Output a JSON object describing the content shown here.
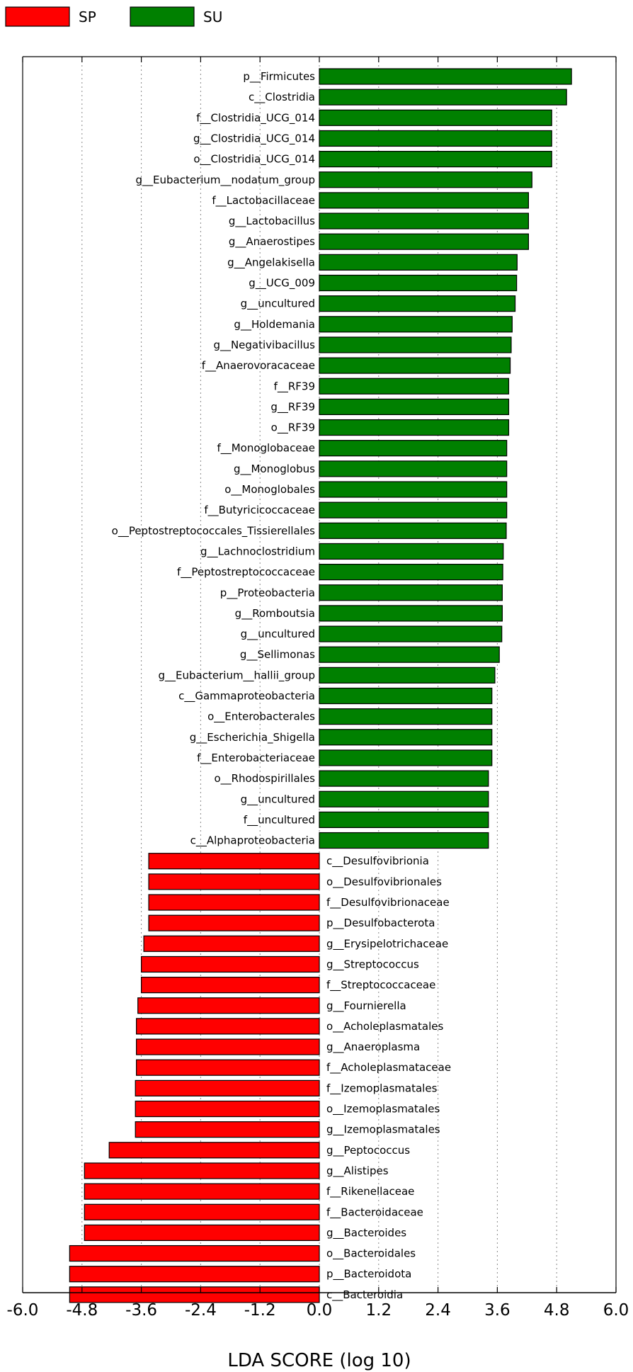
{
  "chart_data": {
    "type": "bar",
    "orientation": "horizontal",
    "xlabel": "LDA SCORE (log 10)",
    "xlim": [
      -6.0,
      6.0
    ],
    "xticks": [
      "-6.0",
      "-4.8",
      "-3.6",
      "-2.4",
      "-1.2",
      "0.0",
      "1.2",
      "2.4",
      "3.6",
      "4.8",
      "6.0"
    ],
    "grid": "vertical dotted",
    "legend": {
      "placement": "top-left",
      "entries": [
        {
          "name": "SP",
          "color": "#ff0000"
        },
        {
          "name": "SU",
          "color": "#008000"
        }
      ]
    },
    "series": [
      {
        "name": "SU",
        "color": "#008000",
        "categories": [
          "p__Firmicutes",
          "c__Clostridia",
          "f__Clostridia_UCG_014",
          "g__Clostridia_UCG_014",
          "o__Clostridia_UCG_014",
          "g__Eubacterium__nodatum_group",
          "f__Lactobacillaceae",
          "g__Lactobacillus",
          "g__Anaerostipes",
          "g__Angelakisella",
          "g__UCG_009",
          "g__uncultured",
          "g__Holdemania",
          "g__Negativibacillus",
          "f__Anaerovoracaceae",
          "f__RF39",
          "g__RF39",
          "o__RF39",
          "f__Monoglobaceae",
          "g__Monoglobus",
          "o__Monoglobales",
          "f__Butyricicoccaceae",
          "o__Peptostreptococcales_Tissierellales",
          "g__Lachnoclostridium",
          "f__Peptostreptococcaceae",
          "p__Proteobacteria",
          "g__Romboutsia",
          "g__uncultured",
          "g__Sellimonas",
          "g__Eubacterium__hallii_group",
          "c__Gammaproteobacteria",
          "o__Enterobacterales",
          "g__Escherichia_Shigella",
          "f__Enterobacteriaceae",
          "o__Rhodospirillales",
          "g__uncultured",
          "f__uncultured",
          "c__Alphaproteobacteria"
        ],
        "values": [
          5.1,
          5.0,
          4.7,
          4.7,
          4.7,
          4.3,
          4.23,
          4.23,
          4.23,
          4.0,
          3.99,
          3.96,
          3.9,
          3.88,
          3.86,
          3.83,
          3.83,
          3.83,
          3.79,
          3.79,
          3.79,
          3.79,
          3.78,
          3.72,
          3.71,
          3.7,
          3.7,
          3.69,
          3.64,
          3.55,
          3.49,
          3.49,
          3.49,
          3.49,
          3.42,
          3.42,
          3.42,
          3.42
        ]
      },
      {
        "name": "SP",
        "color": "#ff0000",
        "categories": [
          "c__Desulfovibrionia",
          "o__Desulfovibrionales",
          "f__Desulfovibrionaceae",
          "p__Desulfobacterota",
          "g__Erysipelotrichaceae",
          "g__Streptococcus",
          "f__Streptococcaceae",
          "g__Fournierella",
          "o__Acholeplasmatales",
          "g__Anaeroplasma",
          "f__Acholeplasmataceae",
          "f__Izemoplasmatales",
          "o__Izemoplasmatales",
          "g__Izemoplasmatales",
          "g__Peptococcus",
          "g__Alistipes",
          "f__Rikenellaceae",
          "f__Bacteroidaceae",
          "g__Bacteroides",
          "o__Bacteroidales",
          "p__Bacteroidota",
          "c__Bacteroidia"
        ],
        "values": [
          -3.45,
          -3.45,
          -3.45,
          -3.45,
          -3.55,
          -3.6,
          -3.6,
          -3.67,
          -3.7,
          -3.7,
          -3.7,
          -3.72,
          -3.72,
          -3.72,
          -4.25,
          -4.75,
          -4.75,
          -4.75,
          -4.75,
          -5.05,
          -5.05,
          -5.05
        ]
      }
    ]
  }
}
